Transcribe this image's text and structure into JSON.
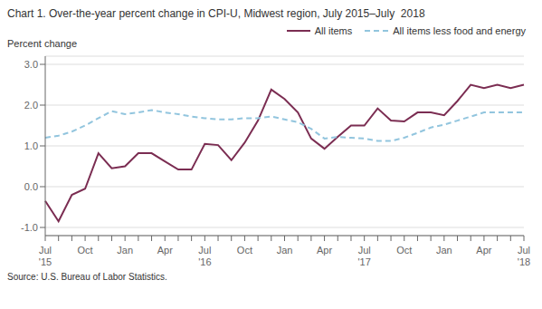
{
  "chart_data": {
    "type": "line",
    "title": "Chart 1. Over-the-year percent change in CPI-U, Midwest region, July 2015–July  2018",
    "ylabel": "Percent change",
    "source": "Source: U.S. Bureau of Labor Statistics.",
    "categories": [
      "Jul\n'15",
      null,
      null,
      "Oct",
      null,
      null,
      "Jan",
      null,
      null,
      "Apr",
      null,
      null,
      "Jul\n'16",
      null,
      null,
      "Oct",
      null,
      null,
      "Jan",
      null,
      null,
      "Apr",
      null,
      null,
      "Jul\n'17",
      null,
      null,
      "Oct",
      null,
      null,
      "Jan",
      null,
      null,
      "Apr",
      null,
      null,
      "Jul\n'18"
    ],
    "series": [
      {
        "name": "All items",
        "color": "#7B2D52",
        "line_style": "solid",
        "values": [
          -0.35,
          -0.85,
          -0.2,
          -0.05,
          0.82,
          0.45,
          0.5,
          0.82,
          0.82,
          0.62,
          0.42,
          0.42,
          1.05,
          1.02,
          0.65,
          1.08,
          1.62,
          2.38,
          2.15,
          1.82,
          1.18,
          0.93,
          1.22,
          1.5,
          1.5,
          1.92,
          1.62,
          1.6,
          1.82,
          1.82,
          1.75,
          2.1,
          2.5,
          2.42,
          2.5,
          2.42,
          2.5
        ]
      },
      {
        "name": "All items less food and energy",
        "color": "#92C5DE",
        "line_style": "dashed",
        "values": [
          1.2,
          1.25,
          1.35,
          1.5,
          1.68,
          1.85,
          1.78,
          1.82,
          1.88,
          1.82,
          1.78,
          1.72,
          1.68,
          1.65,
          1.65,
          1.68,
          1.68,
          1.72,
          1.65,
          1.58,
          1.42,
          1.18,
          1.22,
          1.2,
          1.18,
          1.12,
          1.12,
          1.2,
          1.32,
          1.45,
          1.52,
          1.62,
          1.72,
          1.82,
          1.82,
          1.82,
          1.82
        ]
      }
    ],
    "ylim": [
      -1.2,
      3.2
    ],
    "yticks": [
      {
        "value": -1.0,
        "label": "-1.0"
      },
      {
        "value": 0.0,
        "label": "0.0"
      },
      {
        "value": 1.0,
        "label": "1.0"
      },
      {
        "value": 2.0,
        "label": "2.0"
      },
      {
        "value": 3.0,
        "label": "3.0"
      }
    ],
    "grid": true,
    "legend": "upper right"
  }
}
